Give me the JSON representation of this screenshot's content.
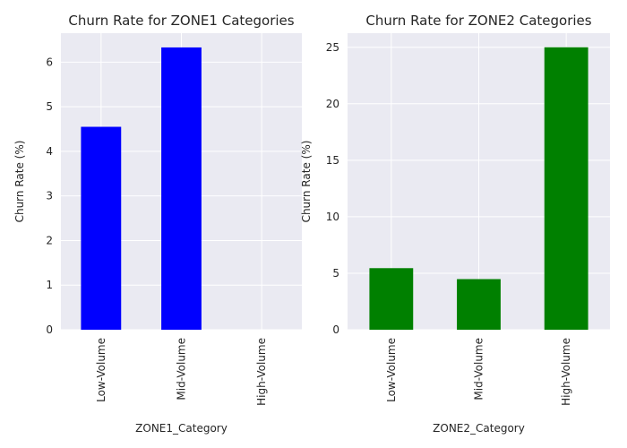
{
  "chart_data": [
    {
      "type": "bar",
      "title": "Churn Rate for ZONE1 Categories",
      "xlabel": "ZONE1_Category",
      "ylabel": "Churn Rate (%)",
      "categories": [
        "Low-Volume",
        "Mid-Volume",
        "High-Volume"
      ],
      "values": [
        4.55,
        6.33,
        0
      ],
      "ylim": [
        0,
        6.65
      ],
      "yticks": [
        0,
        1,
        2,
        3,
        4,
        5,
        6
      ],
      "color": "#0000ff",
      "grid": true
    },
    {
      "type": "bar",
      "title": "Churn Rate for ZONE2 Categories",
      "xlabel": "ZONE2_Category",
      "ylabel": "Churn Rate (%)",
      "categories": [
        "Low-Volume",
        "Mid-Volume",
        "High-Volume"
      ],
      "values": [
        5.45,
        4.48,
        25.0
      ],
      "ylim": [
        0,
        26.25
      ],
      "yticks": [
        0,
        5,
        10,
        15,
        20,
        25
      ],
      "color": "#008000",
      "grid": true
    }
  ],
  "style": {
    "panel_background": "#eaeaf2",
    "grid_color": "#ffffff",
    "text_color": "#262626"
  }
}
